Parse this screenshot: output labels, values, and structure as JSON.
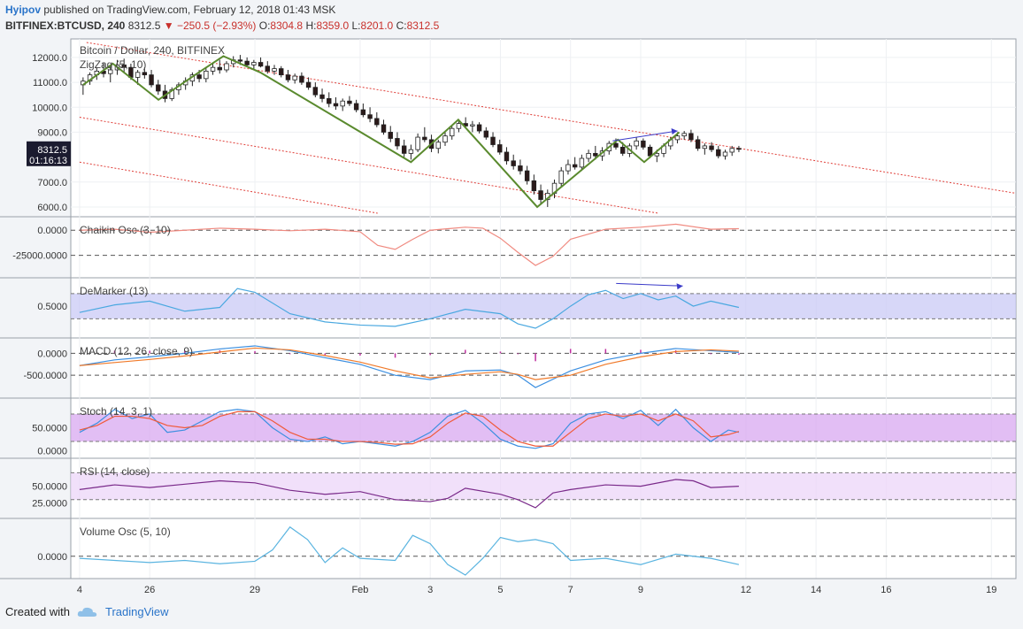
{
  "header": {
    "user": "Hyipov",
    "published_text": "published on TradingView.com, February 12, 2018 01:43 MSK",
    "symbol": "BITFINEX:BTCUSD, 240",
    "last": "8312.5",
    "change": "−250.5 (−2.93%)",
    "o_label": "O:",
    "o": "8304.8",
    "h_label": "H:",
    "h": "8359.0",
    "l_label": "L:",
    "l": "8201.0",
    "c_label": "C:",
    "c": "8312.5"
  },
  "footer": {
    "created_with": "Created with",
    "brand": "TradingView"
  },
  "colors": {
    "bull": "#ffffff",
    "bear": "#2b1a1a",
    "zigzag": "#5a8a2e",
    "channel": "#e0403a",
    "arrow": "#3a3ac8",
    "chaikin": "#f08a80",
    "demarker": "#4aa8e0",
    "macd": "#3c8fe0",
    "macd_signal": "#f07a2a",
    "macd_hist": "#c030a0",
    "stoch_k": "#3c8fe0",
    "stoch_d": "#f05a3a",
    "rsi": "#7a2a8a",
    "volosc": "#5ab4e0",
    "price_label_bg": "#1b1b2f"
  },
  "chart_data": [
    {
      "type": "candlestick",
      "title": "Bitcoin / Dollar, 240, BITFINEX",
      "indicator": "ZigZag (5, 10)",
      "last_price_label": "8312.5",
      "countdown_label": "01:16:13",
      "y_ticks": [
        "12000.0",
        "11000.0",
        "10000.0",
        "9000.0",
        "7000.0",
        "6000.0"
      ],
      "y_tick_values": [
        12000,
        11000,
        10000,
        9000,
        7000,
        6000
      ],
      "ylim": [
        5750,
        12600
      ],
      "x_ticks": [
        "4",
        "26",
        "29",
        "Feb",
        "3",
        "5",
        "7",
        "9",
        "12",
        "14",
        "16",
        "19"
      ],
      "x_tick_days": [
        0,
        2,
        5,
        8,
        10,
        12,
        14,
        16,
        19,
        21,
        23,
        26
      ],
      "x_range_days": [
        -0.25,
        26.7
      ],
      "last_bar_day": 18.8,
      "zigzag": [
        [
          0.1,
          10900
        ],
        [
          0.95,
          11750
        ],
        [
          2.25,
          10300
        ],
        [
          3.4,
          11400
        ],
        [
          4.1,
          12050
        ],
        [
          5.15,
          11400
        ],
        [
          9.45,
          7800
        ],
        [
          10.8,
          9500
        ],
        [
          13.05,
          6000
        ],
        [
          15.35,
          8700
        ],
        [
          16.1,
          7800
        ],
        [
          17.1,
          9000
        ]
      ],
      "candles": [
        [
          10900,
          11200,
          10500,
          11050
        ],
        [
          11050,
          11400,
          10900,
          11300
        ],
        [
          11300,
          11600,
          11100,
          11450
        ],
        [
          11450,
          11800,
          11200,
          11350
        ],
        [
          11350,
          11650,
          11000,
          11500
        ],
        [
          11500,
          11900,
          11300,
          11700
        ],
        [
          11700,
          11950,
          11400,
          11600
        ],
        [
          11600,
          11750,
          11100,
          11200
        ],
        [
          11200,
          11500,
          10900,
          11400
        ],
        [
          11400,
          11600,
          11150,
          11300
        ],
        [
          11300,
          11500,
          10800,
          10900
        ],
        [
          10900,
          11100,
          10500,
          10650
        ],
        [
          10650,
          10900,
          10200,
          10350
        ],
        [
          10350,
          10800,
          10250,
          10700
        ],
        [
          10700,
          11000,
          10500,
          10900
        ],
        [
          10900,
          11200,
          10700,
          11050
        ],
        [
          11050,
          11400,
          10850,
          11300
        ],
        [
          11300,
          11500,
          11000,
          11150
        ],
        [
          11150,
          11600,
          11000,
          11450
        ],
        [
          11450,
          11800,
          11300,
          11600
        ],
        [
          11600,
          11900,
          11350,
          11500
        ],
        [
          11500,
          11850,
          11400,
          11750
        ],
        [
          11750,
          12050,
          11600,
          11900
        ],
        [
          11900,
          12100,
          11700,
          11850
        ],
        [
          11850,
          12000,
          11650,
          11700
        ],
        [
          11700,
          11900,
          11500,
          11800
        ],
        [
          11800,
          12000,
          11600,
          11650
        ],
        [
          11650,
          11850,
          11350,
          11450
        ],
        [
          11450,
          11700,
          11300,
          11550
        ],
        [
          11550,
          11650,
          11200,
          11300
        ],
        [
          11300,
          11500,
          11000,
          11100
        ],
        [
          11100,
          11350,
          10950,
          11250
        ],
        [
          11250,
          11400,
          10900,
          11000
        ],
        [
          11000,
          11200,
          10700,
          10800
        ],
        [
          10800,
          11000,
          10400,
          10500
        ],
        [
          10500,
          10750,
          10200,
          10350
        ],
        [
          10350,
          10600,
          10000,
          10150
        ],
        [
          10150,
          10400,
          9900,
          10050
        ],
        [
          10050,
          10350,
          9850,
          10250
        ],
        [
          10250,
          10450,
          10050,
          10150
        ],
        [
          10150,
          10300,
          9800,
          9900
        ],
        [
          9900,
          10150,
          9600,
          9700
        ],
        [
          9700,
          10000,
          9400,
          9550
        ],
        [
          9550,
          9800,
          9200,
          9300
        ],
        [
          9300,
          9500,
          8900,
          9000
        ],
        [
          9000,
          9250,
          8600,
          8750
        ],
        [
          8750,
          9000,
          8300,
          8450
        ],
        [
          8450,
          8700,
          8000,
          8150
        ],
        [
          8150,
          8500,
          7900,
          8300
        ],
        [
          8300,
          8950,
          8200,
          8800
        ],
        [
          8800,
          9200,
          8600,
          8700
        ],
        [
          8700,
          8900,
          8200,
          8350
        ],
        [
          8350,
          8700,
          8150,
          8600
        ],
        [
          8600,
          9000,
          8450,
          8850
        ],
        [
          8850,
          9300,
          8700,
          9150
        ],
        [
          9150,
          9500,
          9000,
          9350
        ],
        [
          9350,
          9600,
          9150,
          9250
        ],
        [
          9250,
          9450,
          9000,
          9300
        ],
        [
          9300,
          9400,
          8950,
          9050
        ],
        [
          9050,
          9200,
          8700,
          8800
        ],
        [
          8800,
          9000,
          8400,
          8500
        ],
        [
          8500,
          8700,
          8100,
          8200
        ],
        [
          8200,
          8400,
          7700,
          7850
        ],
        [
          7850,
          8100,
          7500,
          7650
        ],
        [
          7650,
          7900,
          7300,
          7450
        ],
        [
          7450,
          7650,
          6900,
          7050
        ],
        [
          7050,
          7300,
          6500,
          6650
        ],
        [
          6650,
          6900,
          6100,
          6300
        ],
        [
          6300,
          6700,
          6000,
          6550
        ],
        [
          6550,
          7100,
          6350,
          6950
        ],
        [
          6950,
          7600,
          6800,
          7450
        ],
        [
          7450,
          7900,
          7300,
          7700
        ],
        [
          7700,
          8000,
          7500,
          7600
        ],
        [
          7600,
          8100,
          7450,
          7950
        ],
        [
          7950,
          8300,
          7800,
          8150
        ],
        [
          8150,
          8450,
          7900,
          8050
        ],
        [
          8050,
          8400,
          7850,
          8250
        ],
        [
          8250,
          8650,
          8100,
          8550
        ],
        [
          8550,
          8750,
          8300,
          8400
        ],
        [
          8400,
          8600,
          8050,
          8150
        ],
        [
          8150,
          8550,
          8000,
          8450
        ],
        [
          8450,
          8800,
          8300,
          8650
        ],
        [
          8650,
          8750,
          8300,
          8400
        ],
        [
          8400,
          8500,
          7950,
          8050
        ],
        [
          8050,
          8300,
          7800,
          8150
        ],
        [
          8150,
          8550,
          8000,
          8450
        ],
        [
          8450,
          8800,
          8300,
          8700
        ],
        [
          8700,
          9000,
          8550,
          8850
        ],
        [
          8850,
          9050,
          8700,
          8950
        ],
        [
          8950,
          9100,
          8600,
          8700
        ],
        [
          8700,
          8850,
          8250,
          8350
        ],
        [
          8350,
          8550,
          8100,
          8450
        ],
        [
          8450,
          8600,
          8200,
          8300
        ],
        [
          8300,
          8450,
          7950,
          8050
        ],
        [
          8050,
          8300,
          7900,
          8200
        ],
        [
          8200,
          8450,
          8050,
          8350
        ],
        [
          8350,
          8450,
          8200,
          8312.5
        ]
      ]
    },
    {
      "type": "line",
      "title": "Chaikin Osc (3, 10)",
      "y_ticks": [
        "0.0000",
        "-25000.0000"
      ],
      "y_tick_values": [
        0,
        -25000
      ],
      "ylim": [
        -42000,
        9000
      ],
      "x": [
        0,
        1,
        2,
        3,
        4,
        5,
        6,
        7,
        8,
        8.5,
        9,
        9.5,
        10,
        11,
        11.5,
        12,
        12.5,
        13,
        13.5,
        14,
        15,
        16,
        17,
        18,
        18.8
      ],
      "values": [
        0,
        1000,
        -2000,
        0,
        2000,
        1000,
        -500,
        1000,
        -1500,
        -15000,
        -19000,
        -9000,
        0,
        3000,
        2000,
        -8000,
        -22000,
        -35000,
        -26000,
        -9000,
        1000,
        3000,
        6000,
        1000,
        1500
      ]
    },
    {
      "type": "line",
      "title": "DeMarker (13)",
      "y_ticks": [
        "0.5000"
      ],
      "y_tick_values": [
        0.5
      ],
      "ylim": [
        0.08,
        0.88
      ],
      "band": [
        0.3,
        0.7
      ],
      "x": [
        0,
        1,
        2,
        3,
        4,
        4.5,
        5,
        6,
        7,
        8,
        9,
        10,
        11,
        12,
        12.5,
        13,
        13.5,
        14,
        14.5,
        15,
        15.5,
        16,
        16.5,
        17,
        17.5,
        18,
        18.8
      ],
      "values": [
        0.4,
        0.52,
        0.58,
        0.42,
        0.48,
        0.78,
        0.72,
        0.38,
        0.25,
        0.2,
        0.18,
        0.3,
        0.45,
        0.38,
        0.22,
        0.15,
        0.3,
        0.5,
        0.68,
        0.75,
        0.62,
        0.7,
        0.6,
        0.66,
        0.5,
        0.58,
        0.48
      ]
    },
    {
      "type": "line",
      "title": "MACD (12, 26, close, 9)",
      "y_ticks": [
        "0.0000",
        "-500.0000"
      ],
      "y_tick_values": [
        0,
        -500
      ],
      "ylim": [
        -900,
        250
      ],
      "x": [
        0,
        1,
        2,
        3,
        4,
        5,
        6,
        7,
        8,
        9,
        10,
        11,
        12,
        12.5,
        13,
        14,
        15,
        16,
        17,
        18,
        18.8
      ],
      "series": [
        {
          "values": [
            -280,
            -150,
            -80,
            0,
            100,
            170,
            60,
            -100,
            -250,
            -500,
            -600,
            -400,
            -380,
            -500,
            -780,
            -400,
            -150,
            0,
            110,
            60,
            20
          ]
        },
        {
          "values": [
            -280,
            -210,
            -140,
            -60,
            30,
            120,
            80,
            -50,
            -200,
            -400,
            -560,
            -480,
            -420,
            -480,
            -600,
            -500,
            -250,
            -80,
            40,
            80,
            50
          ]
        }
      ],
      "histogram": [
        0,
        60,
        60,
        60,
        70,
        50,
        -20,
        -50,
        -50,
        -100,
        -40,
        80,
        40,
        -20,
        -180,
        100,
        100,
        80,
        70,
        -20,
        -30
      ]
    },
    {
      "type": "line",
      "title": "Stoch (14, 3, 1)",
      "y_ticks": [
        "50.0000",
        "0.0000"
      ],
      "y_tick_values": [
        50,
        0
      ],
      "ylim": [
        -5,
        105
      ],
      "band": [
        20,
        80
      ],
      "x": [
        0,
        0.5,
        1,
        1.5,
        2,
        2.5,
        3,
        3.5,
        4,
        4.5,
        5,
        5.5,
        6,
        6.5,
        7,
        7.5,
        8,
        8.5,
        9,
        9.5,
        10,
        10.5,
        11,
        11.5,
        12,
        12.5,
        13,
        13.5,
        14,
        14.5,
        15,
        15.5,
        16,
        16.5,
        17,
        17.5,
        18,
        18.5,
        18.8
      ],
      "series": [
        {
          "values": [
            40,
            60,
            90,
            70,
            80,
            40,
            45,
            65,
            85,
            90,
            85,
            50,
            25,
            20,
            30,
            15,
            20,
            15,
            10,
            20,
            40,
            75,
            88,
            60,
            25,
            10,
            5,
            15,
            60,
            80,
            85,
            70,
            88,
            55,
            90,
            50,
            20,
            45,
            40
          ]
        },
        {
          "values": [
            45,
            55,
            75,
            75,
            70,
            55,
            50,
            55,
            75,
            85,
            85,
            65,
            40,
            25,
            25,
            20,
            20,
            18,
            14,
            15,
            30,
            60,
            82,
            75,
            45,
            20,
            10,
            10,
            40,
            70,
            80,
            75,
            80,
            65,
            80,
            65,
            30,
            35,
            42
          ]
        }
      ]
    },
    {
      "type": "line",
      "title": "RSI (14, close)",
      "y_ticks": [
        "50.0000",
        "25.0000"
      ],
      "y_tick_values": [
        50,
        25
      ],
      "ylim": [
        10,
        85
      ],
      "band": [
        30,
        70
      ],
      "x": [
        0,
        1,
        2,
        3,
        4,
        5,
        6,
        7,
        8,
        9,
        10,
        10.5,
        11,
        12,
        12.5,
        13,
        13.5,
        14,
        15,
        16,
        17,
        17.5,
        18,
        18.8
      ],
      "values": [
        45,
        52,
        48,
        53,
        58,
        55,
        44,
        38,
        42,
        30,
        27,
        32,
        47,
        38,
        30,
        18,
        40,
        45,
        52,
        50,
        60,
        58,
        48,
        50
      ]
    },
    {
      "type": "line",
      "title": "Volume Osc (5, 10)",
      "y_ticks": [
        "0.0000"
      ],
      "y_tick_values": [
        0
      ],
      "ylim": [
        -45,
        80
      ],
      "x": [
        0,
        1,
        2,
        3,
        4,
        5,
        5.5,
        6,
        6.5,
        7,
        7.5,
        8,
        9,
        9.5,
        10,
        10.5,
        11,
        11.5,
        12,
        12.5,
        13,
        13.5,
        14,
        15,
        16,
        17,
        17.5,
        18,
        18.8
      ],
      "values": [
        -5,
        -10,
        -15,
        -10,
        -18,
        -12,
        15,
        70,
        40,
        -15,
        20,
        -5,
        -10,
        50,
        30,
        -20,
        -45,
        -5,
        45,
        35,
        40,
        30,
        -10,
        -5,
        -20,
        5,
        0,
        -5,
        -20
      ]
    }
  ]
}
